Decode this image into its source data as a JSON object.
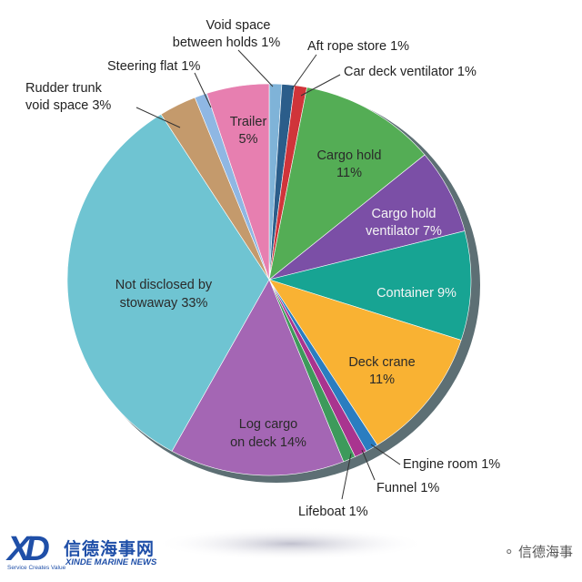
{
  "chart_data": {
    "type": "pie",
    "title": "",
    "slices": [
      {
        "label": "Void space between holds 1%",
        "value": 1,
        "color": "#7fb3d8"
      },
      {
        "label": "Aft rope store 1%",
        "value": 1,
        "color": "#2b5d8a"
      },
      {
        "label": "Car deck ventilator 1%",
        "value": 1,
        "color": "#d0343a"
      },
      {
        "label": "Cargo hold 11%",
        "value": 11,
        "color": "#54ad55"
      },
      {
        "label": "Cargo hold ventilator 7%",
        "value": 7,
        "color": "#7b4fa6"
      },
      {
        "label": "Container 9%",
        "value": 9,
        "color": "#17a493"
      },
      {
        "label": "Deck crane 11%",
        "value": 11,
        "color": "#f9b233"
      },
      {
        "label": "Engine room 1%",
        "value": 1,
        "color": "#2a7dc0"
      },
      {
        "label": "Funnel 1%",
        "value": 1,
        "color": "#a9348f"
      },
      {
        "label": "Lifeboat 1%",
        "value": 1,
        "color": "#3d9a5b"
      },
      {
        "label": "Log cargo on deck 14%",
        "value": 14,
        "color": "#a466b4"
      },
      {
        "label": "Not disclosed by stowaway 33%",
        "value": 33,
        "color": "#6fc4d2"
      },
      {
        "label": "Rudder trunk void space 3%",
        "value": 3,
        "color": "#c49a6c"
      },
      {
        "label": "Steering flat 1%",
        "value": 1,
        "color": "#8fb7e3"
      },
      {
        "label": "Trailer 5%",
        "value": 5,
        "color": "#e77fb0"
      }
    ]
  },
  "labels": {
    "void_space_1": "Void space",
    "void_space_2": "between holds 1%",
    "aft_rope": "Aft rope store 1%",
    "car_deck": "Car deck ventilator 1%",
    "cargo_hold_1": "Cargo hold",
    "cargo_hold_2": "11%",
    "cargo_vent_1": "Cargo hold",
    "cargo_vent_2": "ventilator 7%",
    "container": "Container 9%",
    "deck_crane_1": "Deck crane",
    "deck_crane_2": "11%",
    "engine_room": "Engine room 1%",
    "funnel": "Funnel 1%",
    "lifeboat": "Lifeboat 1%",
    "log_cargo_1": "Log cargo",
    "log_cargo_2": "on deck 14%",
    "not_disclosed_1": "Not disclosed by",
    "not_disclosed_2": "stowaway 33%",
    "rudder_1": "Rudder trunk",
    "rudder_2": "void space 3%",
    "steering": "Steering flat 1%",
    "trailer_1": "Trailer",
    "trailer_2": "5%"
  },
  "brand": {
    "mark": "XD",
    "name_cn": "信德海事网",
    "name_en": "XINDE MARINE NEWS",
    "slogan": "Service Creates Value",
    "right_text": "信德海事",
    "wechat_icon": "wechat-icon"
  }
}
